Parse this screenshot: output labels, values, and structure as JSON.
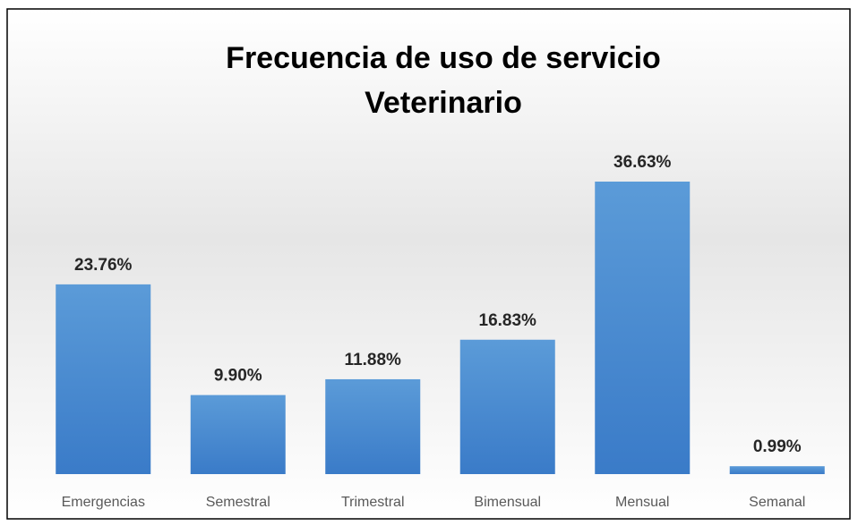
{
  "chart_data": {
    "type": "bar",
    "title": "Frecuencia de uso de servicio Veterinario",
    "categories": [
      "Emergencias",
      "Semestral",
      "Trimestral",
      "Bimensual",
      "Mensual",
      "Semanal"
    ],
    "values": [
      23.76,
      9.9,
      11.88,
      16.83,
      36.63,
      0.99
    ],
    "value_labels": [
      "23.76%",
      "9.90%",
      "11.88%",
      "16.83%",
      "36.63%",
      "0.99%"
    ],
    "color": "#4a8ad4"
  }
}
